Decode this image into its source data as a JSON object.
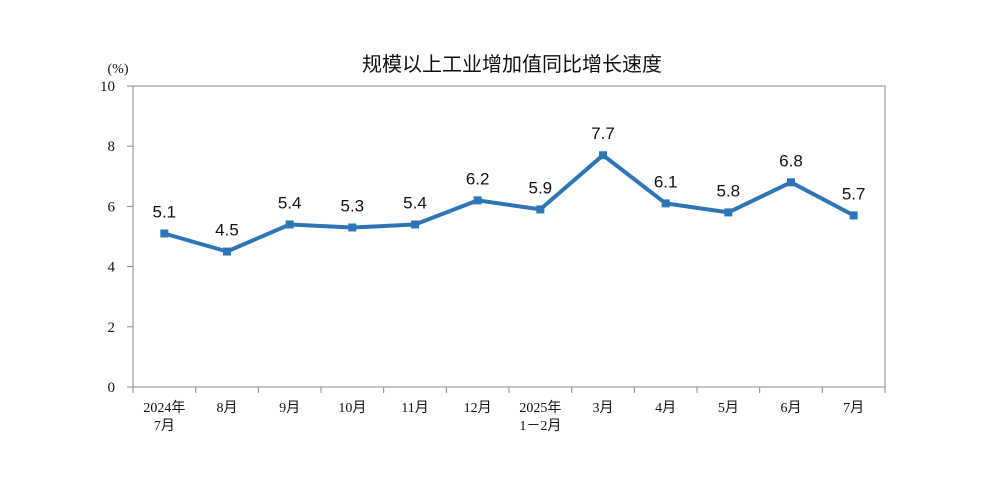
{
  "chart_data": {
    "type": "line",
    "title": "规模以上工业增加值同比增长速度",
    "ylabel": "(%)",
    "xlabel": "",
    "ylim": [
      0,
      10
    ],
    "yticks": [
      0,
      2,
      4,
      6,
      8,
      10
    ],
    "grid": false,
    "categories": [
      [
        "2024年",
        "7月"
      ],
      [
        "8月"
      ],
      [
        "9月"
      ],
      [
        "10月"
      ],
      [
        "11月"
      ],
      [
        "12月"
      ],
      [
        "2025年",
        "1－2月"
      ],
      [
        "3月"
      ],
      [
        "4月"
      ],
      [
        "5月"
      ],
      [
        "6月"
      ],
      [
        "7月"
      ]
    ],
    "series": [
      {
        "name": "规模以上工业增加值同比增长速度",
        "color": "#2e75b6",
        "values": [
          5.1,
          4.5,
          5.4,
          5.3,
          5.4,
          6.2,
          5.9,
          7.7,
          6.1,
          5.8,
          6.8,
          5.7
        ]
      }
    ],
    "data_labels": [
      "5.1",
      "4.5",
      "5.4",
      "5.3",
      "5.4",
      "6.2",
      "5.9",
      "7.7",
      "6.1",
      "5.8",
      "6.8",
      "5.7"
    ]
  }
}
